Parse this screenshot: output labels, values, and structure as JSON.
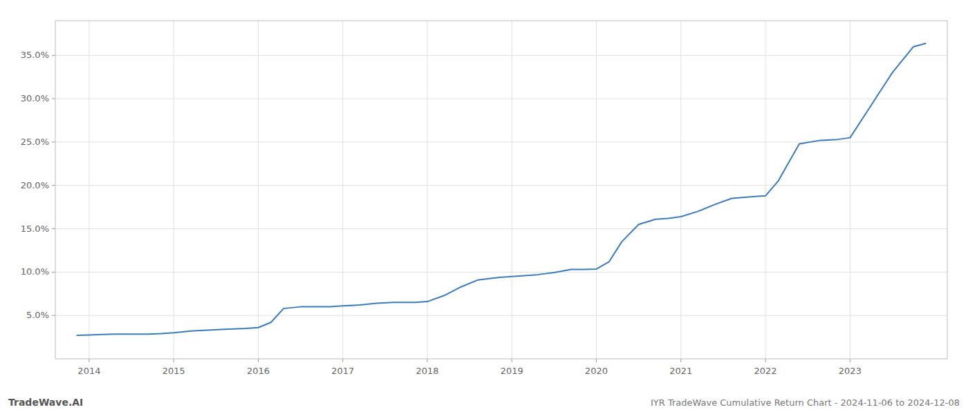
{
  "chart_data": {
    "type": "line",
    "title": "IYR TradeWave Cumulative Return Chart - 2024-11-06 to 2024-12-08",
    "annotations": [
      "TradeWave.AI"
    ],
    "color": "#3a7bbf",
    "grid": true,
    "x": [
      2013.85,
      2014.0,
      2014.15,
      2014.3,
      2014.5,
      2014.7,
      2014.85,
      2015.0,
      2015.2,
      2015.4,
      2015.6,
      2015.85,
      2016.0,
      2016.15,
      2016.3,
      2016.5,
      2016.7,
      2016.85,
      2017.0,
      2017.2,
      2017.4,
      2017.6,
      2017.85,
      2018.0,
      2018.2,
      2018.4,
      2018.6,
      2018.85,
      2019.0,
      2019.15,
      2019.3,
      2019.5,
      2019.7,
      2019.85,
      2020.0,
      2020.15,
      2020.3,
      2020.5,
      2020.7,
      2020.85,
      2021.0,
      2021.2,
      2021.4,
      2021.6,
      2021.85,
      2022.0,
      2022.15,
      2022.4,
      2022.65,
      2022.85,
      2023.0,
      2023.2,
      2023.5,
      2023.75,
      2023.9
    ],
    "values": [
      2.7,
      2.75,
      2.8,
      2.85,
      2.85,
      2.85,
      2.9,
      3.0,
      3.2,
      3.3,
      3.4,
      3.5,
      3.6,
      4.2,
      5.8,
      6.0,
      6.0,
      6.0,
      6.1,
      6.2,
      6.4,
      6.5,
      6.5,
      6.6,
      7.3,
      8.3,
      9.1,
      9.4,
      9.5,
      9.6,
      9.7,
      9.95,
      10.3,
      10.3,
      10.35,
      11.2,
      13.5,
      15.5,
      16.1,
      16.2,
      16.4,
      17.0,
      17.8,
      18.5,
      18.7,
      18.8,
      20.5,
      24.8,
      25.2,
      25.3,
      25.5,
      28.5,
      33.0,
      36.0,
      36.4
    ],
    "xlim": [
      2013.6,
      2024.15
    ],
    "xticks": [
      2014,
      2015,
      2016,
      2017,
      2018,
      2019,
      2020,
      2021,
      2022,
      2023
    ],
    "ylim": [
      0,
      39
    ],
    "yticks": [
      {
        "value": 5.0,
        "label": "5.0%"
      },
      {
        "value": 10.0,
        "label": "10.0%"
      },
      {
        "value": 15.0,
        "label": "15.0%"
      },
      {
        "value": 20.0,
        "label": "20.0%"
      },
      {
        "value": 25.0,
        "label": "25.0%"
      },
      {
        "value": 30.0,
        "label": "30.0%"
      },
      {
        "value": 35.0,
        "label": "35.0%"
      }
    ]
  }
}
